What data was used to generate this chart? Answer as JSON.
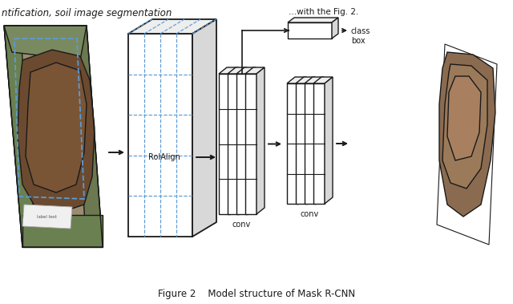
{
  "title": "Figure 2    Model structure of Mask R-CNN",
  "title_fontsize": 8.5,
  "bg_color": "#ffffff",
  "text_color": "#1a1a1a",
  "caption_top_left": "ntification, soil image segmentation",
  "roialign_label": "RoIAlign",
  "conv_label1": "conv",
  "conv_label2": "conv",
  "class_box_label": "class\nbox",
  "blue_dashed_color": "#5b9bd5",
  "arrow_color": "#1a1a1a",
  "edge_color": "#1a1a1a",
  "face_white": "#ffffff",
  "face_light": "#eeeeee",
  "face_mid": "#d8d8d8"
}
